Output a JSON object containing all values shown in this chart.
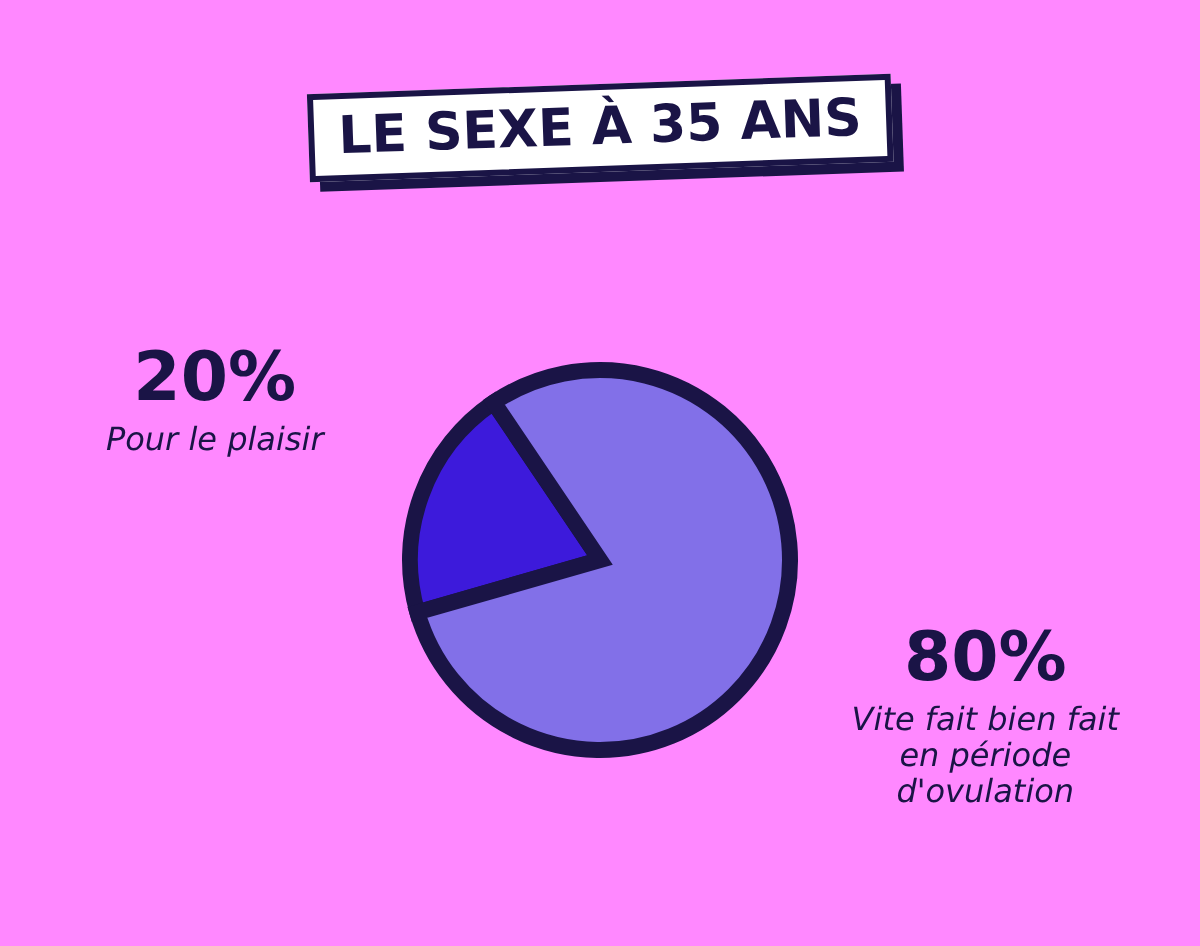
{
  "chart_data": {
    "type": "pie",
    "title": "LE SEXE À 35 ANS",
    "categories": [
      "Pour le plaisir",
      "Vite fait bien fait en période d'ovulation"
    ],
    "values": [
      20,
      80
    ],
    "colors": [
      "#3d1adb",
      "#8270e8"
    ],
    "value_labels": [
      "20%",
      "80%"
    ],
    "legend": false
  }
}
